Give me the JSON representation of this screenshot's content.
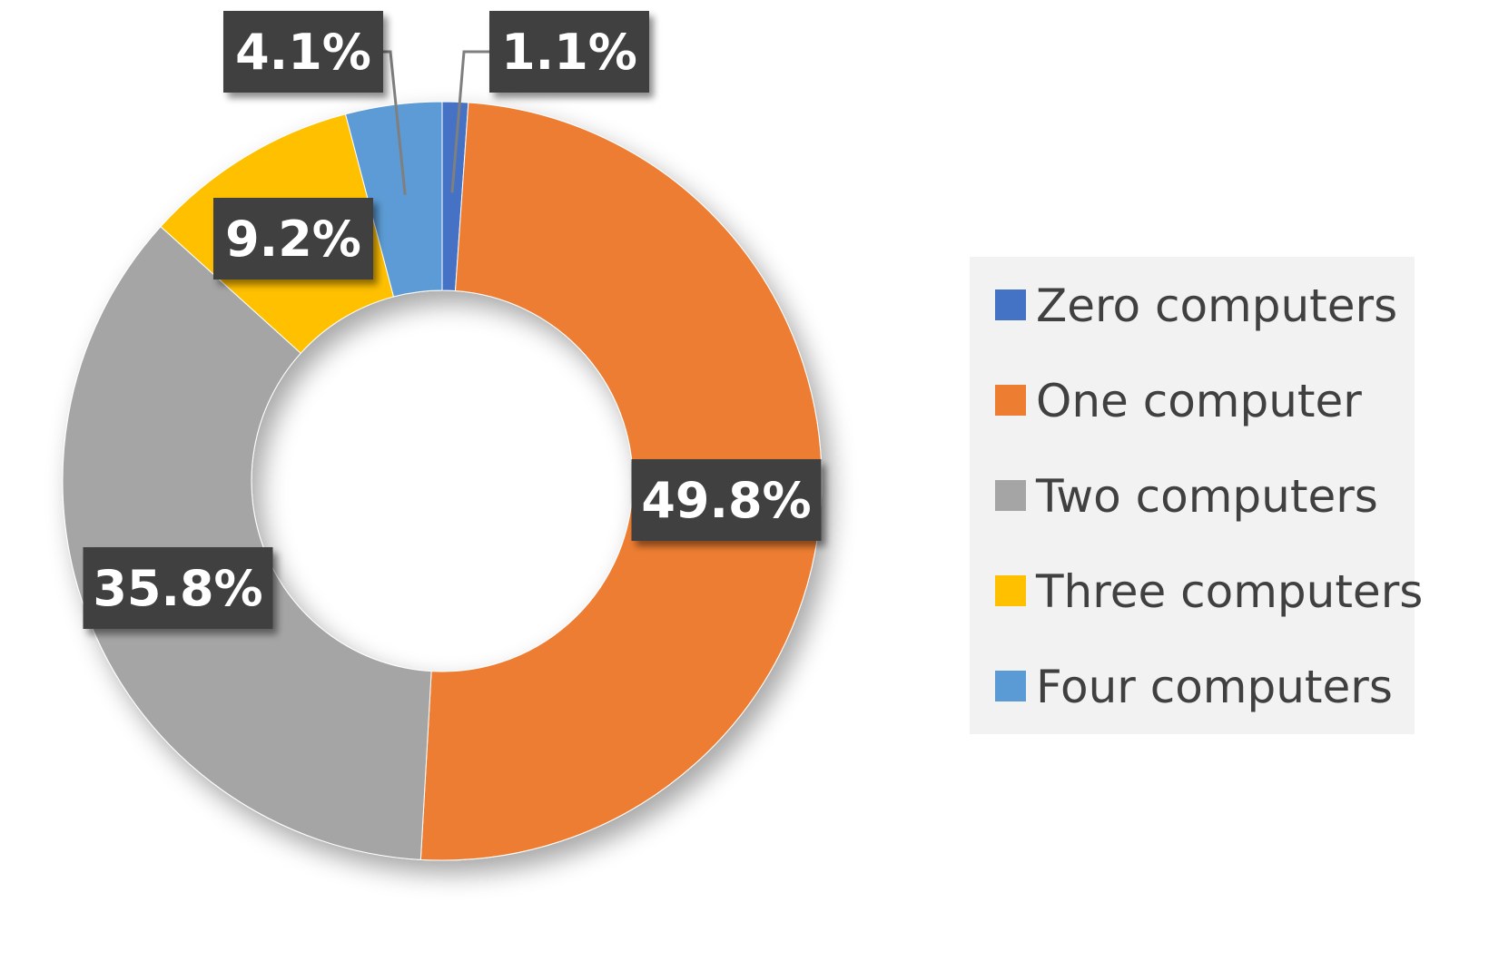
{
  "chart_data": {
    "type": "pie",
    "variant": "donut",
    "title": "",
    "categories": [
      "Zero computers",
      "One  computer",
      "Two computers",
      "Three computers",
      "Four computers"
    ],
    "values": [
      1.1,
      49.8,
      35.8,
      9.2,
      4.1
    ],
    "data_labels": [
      "1.1%",
      "49.8%",
      "35.8%",
      "9.2%",
      "4.1%"
    ],
    "colors": [
      "#4472C4",
      "#ED7D31",
      "#A5A5A5",
      "#FFC000",
      "#5B9BD5"
    ],
    "label_box_color": "#404040",
    "legend_position": "right",
    "legend_background": "#F2F2F2",
    "start_angle_deg": 0,
    "direction": "clockwise"
  }
}
